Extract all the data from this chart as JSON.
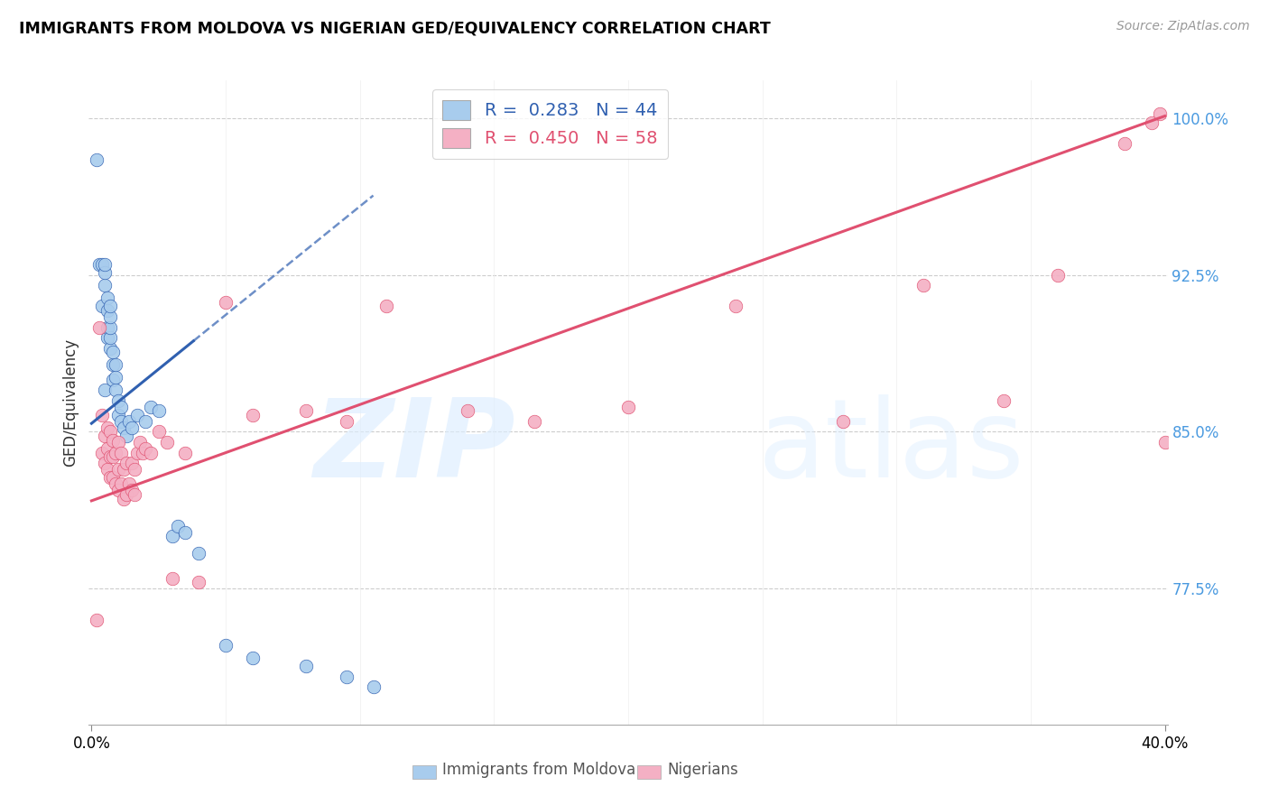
{
  "title": "IMMIGRANTS FROM MOLDOVA VS NIGERIAN GED/EQUIVALENCY CORRELATION CHART",
  "source": "Source: ZipAtlas.com",
  "ylabel": "GED/Equivalency",
  "xlim": [
    -0.001,
    0.401
  ],
  "ylim": [
    0.71,
    1.018
  ],
  "yticks": [
    0.775,
    0.85,
    0.925,
    1.0
  ],
  "ytick_labels": [
    "77.5%",
    "85.0%",
    "92.5%",
    "100.0%"
  ],
  "xtick_left": "0.0%",
  "xtick_right": "40.0%",
  "legend_line1": "R =  0.283   N = 44",
  "legend_line2": "R =  0.450   N = 58",
  "color_moldova": "#A8CCED",
  "color_nigerian": "#F4B0C4",
  "color_line_moldova": "#3060B0",
  "color_line_nigerian": "#E05070",
  "color_ytick": "#4A9AE0",
  "moldova_trendline_x0": 0.0,
  "moldova_trendline_y0": 0.854,
  "moldova_trendline_x1": 0.105,
  "moldova_trendline_y1": 0.963,
  "moldova_trendline_solid_x1": 0.038,
  "nigerian_trendline_x0": 0.0,
  "nigerian_trendline_y0": 0.817,
  "nigerian_trendline_x1": 0.4,
  "nigerian_trendline_y1": 1.001,
  "moldova_x": [
    0.002,
    0.003,
    0.004,
    0.004,
    0.005,
    0.005,
    0.005,
    0.005,
    0.006,
    0.006,
    0.006,
    0.006,
    0.007,
    0.007,
    0.007,
    0.007,
    0.007,
    0.008,
    0.008,
    0.008,
    0.009,
    0.009,
    0.009,
    0.01,
    0.01,
    0.011,
    0.011,
    0.012,
    0.013,
    0.014,
    0.015,
    0.017,
    0.02,
    0.022,
    0.025,
    0.03,
    0.032,
    0.035,
    0.04,
    0.05,
    0.06,
    0.08,
    0.095,
    0.105
  ],
  "moldova_y": [
    0.98,
    0.93,
    0.91,
    0.93,
    0.92,
    0.926,
    0.93,
    0.87,
    0.895,
    0.9,
    0.908,
    0.914,
    0.89,
    0.895,
    0.9,
    0.905,
    0.91,
    0.875,
    0.882,
    0.888,
    0.87,
    0.876,
    0.882,
    0.858,
    0.865,
    0.855,
    0.862,
    0.852,
    0.848,
    0.855,
    0.852,
    0.858,
    0.855,
    0.862,
    0.86,
    0.8,
    0.805,
    0.802,
    0.792,
    0.748,
    0.742,
    0.738,
    0.733,
    0.728
  ],
  "nigerian_x": [
    0.002,
    0.003,
    0.004,
    0.004,
    0.005,
    0.005,
    0.006,
    0.006,
    0.006,
    0.007,
    0.007,
    0.007,
    0.008,
    0.008,
    0.008,
    0.009,
    0.009,
    0.01,
    0.01,
    0.01,
    0.011,
    0.011,
    0.012,
    0.012,
    0.013,
    0.013,
    0.014,
    0.015,
    0.015,
    0.016,
    0.016,
    0.017,
    0.018,
    0.019,
    0.02,
    0.022,
    0.025,
    0.028,
    0.03,
    0.035,
    0.04,
    0.05,
    0.06,
    0.08,
    0.095,
    0.11,
    0.14,
    0.165,
    0.2,
    0.24,
    0.28,
    0.31,
    0.34,
    0.36,
    0.385,
    0.395,
    0.4,
    0.398
  ],
  "nigerian_y": [
    0.76,
    0.9,
    0.84,
    0.858,
    0.835,
    0.848,
    0.832,
    0.842,
    0.852,
    0.828,
    0.838,
    0.85,
    0.828,
    0.838,
    0.846,
    0.825,
    0.84,
    0.822,
    0.832,
    0.845,
    0.825,
    0.84,
    0.818,
    0.832,
    0.82,
    0.835,
    0.825,
    0.822,
    0.835,
    0.82,
    0.832,
    0.84,
    0.845,
    0.84,
    0.842,
    0.84,
    0.85,
    0.845,
    0.78,
    0.84,
    0.778,
    0.912,
    0.858,
    0.86,
    0.855,
    0.91,
    0.86,
    0.855,
    0.862,
    0.91,
    0.855,
    0.92,
    0.865,
    0.925,
    0.988,
    0.998,
    0.845,
    1.002
  ]
}
